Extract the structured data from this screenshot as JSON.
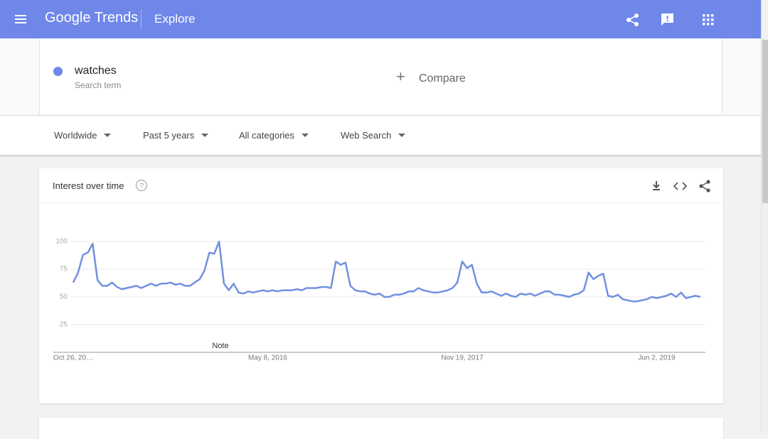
{
  "header": {
    "logo": "Google Trends",
    "section": "Explore"
  },
  "search": {
    "term": "watches",
    "term_type": "Search term",
    "compare": "Compare"
  },
  "filters": [
    "Worldwide",
    "Past 5 years",
    "All categories",
    "Web Search"
  ],
  "card": {
    "title": "Interest over time"
  },
  "chart_data": {
    "type": "line",
    "color": "#7190e0",
    "annotation": "Note",
    "categories": [
      "Oct 26, 20…",
      null,
      null,
      null,
      null,
      null,
      null,
      null,
      null,
      null,
      null,
      null,
      null,
      null,
      null,
      null,
      null,
      null,
      null,
      null,
      null,
      null,
      null,
      null,
      null,
      null,
      null,
      null,
      null,
      null,
      null,
      null,
      null,
      null,
      null,
      null,
      null,
      null,
      null,
      null,
      "May 8, 2016",
      null,
      null,
      null,
      null,
      null,
      null,
      null,
      null,
      null,
      null,
      null,
      null,
      null,
      null,
      null,
      null,
      null,
      null,
      null,
      null,
      null,
      null,
      null,
      null,
      null,
      null,
      null,
      null,
      null,
      null,
      null,
      null,
      null,
      null,
      null,
      null,
      null,
      null,
      null,
      "Nov 19, 2017",
      null,
      null,
      null,
      null,
      null,
      null,
      null,
      null,
      null,
      null,
      null,
      null,
      null,
      null,
      null,
      null,
      null,
      null,
      null,
      null,
      null,
      null,
      null,
      null,
      null,
      null,
      null,
      null,
      null,
      null,
      null,
      null,
      null,
      null,
      null,
      null,
      null,
      null,
      null,
      "Jun 2, 2019",
      null,
      null,
      null,
      null,
      null,
      null,
      null,
      null,
      null
    ],
    "values": [
      63,
      72,
      88,
      90,
      98,
      65,
      60,
      60,
      63,
      59,
      57,
      58,
      59,
      60,
      58,
      60,
      62,
      60,
      62,
      62,
      63,
      61,
      62,
      60,
      60,
      63,
      66,
      74,
      90,
      89,
      100,
      62,
      56,
      62,
      54,
      53,
      55,
      54,
      55,
      56,
      55,
      56,
      55,
      56,
      56,
      56,
      57,
      56,
      58,
      58,
      58,
      59,
      59,
      58,
      82,
      79,
      81,
      60,
      56,
      55,
      55,
      53,
      52,
      53,
      50,
      50,
      52,
      52,
      53,
      55,
      55,
      58,
      56,
      55,
      54,
      54,
      55,
      56,
      58,
      63,
      82,
      76,
      79,
      62,
      54,
      54,
      55,
      53,
      51,
      53,
      51,
      50,
      53,
      52,
      53,
      51,
      53,
      55,
      55,
      52,
      52,
      51,
      50,
      52,
      53,
      56,
      72,
      66,
      69,
      71,
      51,
      50,
      52,
      48,
      47,
      46,
      46,
      47,
      48,
      50,
      49,
      50,
      51,
      53,
      50,
      54,
      49,
      50,
      51,
      50
    ],
    "ylim": [
      0,
      100
    ],
    "yticks": [
      25,
      50,
      75,
      100
    ],
    "grid": true
  }
}
